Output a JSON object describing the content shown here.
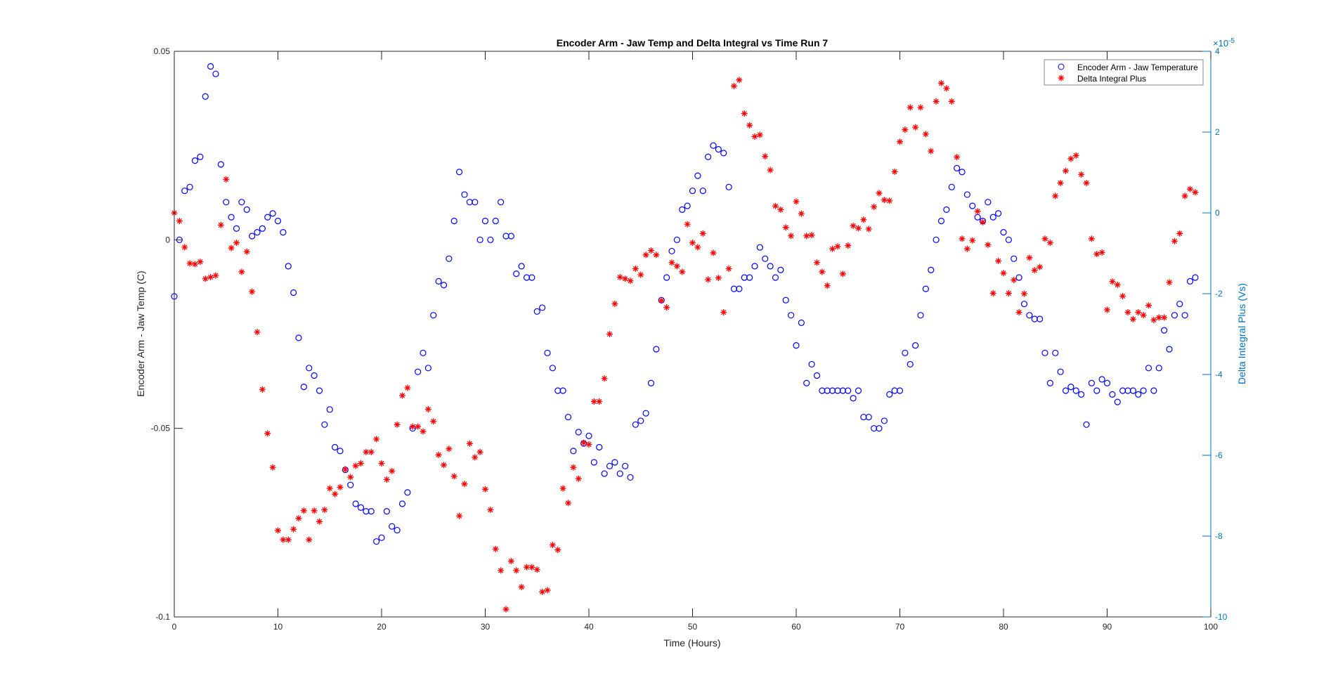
{
  "chart_data": {
    "type": "scatter",
    "title": "Encoder Arm - Jaw Temp and Delta Integral vs Time Run 7",
    "xlabel": "Time (Hours)",
    "ylabel": "Encoder Arm - Jaw Temp (C)",
    "ylabel_right": "Delta Integral Plus (Vs)",
    "right_exponent_label": "×10",
    "right_exponent": "-5",
    "xlim": [
      0,
      100
    ],
    "ylim": [
      -0.1,
      0.05
    ],
    "ylim_right": [
      -10,
      4
    ],
    "xticks": [
      "0",
      "10",
      "20",
      "30",
      "40",
      "50",
      "60",
      "70",
      "80",
      "90",
      "100"
    ],
    "yticks": [
      "0.05",
      "0",
      "-0.05",
      "-0.1"
    ],
    "yticks_right": [
      "4",
      "2",
      "0",
      "-2",
      "-4",
      "-6",
      "-8",
      "-10"
    ],
    "legend_position": "top-right",
    "colors": {
      "temp": "#0000ff",
      "delta": "#ff0000",
      "right_axis": "#0072bd"
    },
    "series": [
      {
        "name": "Encoder Arm - Jaw Temperature",
        "axis": "left",
        "marker": "circle",
        "x_start": 0,
        "x_step": 0.5,
        "values": [
          -0.015,
          0,
          0.013,
          0.014,
          0.021,
          0.022,
          0.038,
          0.046,
          0.044,
          0.02,
          0.01,
          0.006,
          0.003,
          0.01,
          0.008,
          0.001,
          0.002,
          0.003,
          0.006,
          0.007,
          0.005,
          0.002,
          -0.007,
          -0.014,
          -0.026,
          -0.039,
          -0.034,
          -0.036,
          -0.04,
          -0.049,
          -0.045,
          -0.055,
          -0.056,
          -0.061,
          -0.065,
          -0.07,
          -0.071,
          -0.072,
          -0.072,
          -0.08,
          -0.079,
          -0.072,
          -0.076,
          -0.077,
          -0.07,
          -0.067,
          -0.05,
          -0.035,
          -0.03,
          -0.034,
          -0.02,
          -0.011,
          -0.012,
          -0.005,
          0.005,
          0.018,
          0.012,
          0.01,
          0.01,
          0,
          0.005,
          0,
          0.005,
          0.01,
          0.001,
          0.001,
          -0.009,
          -0.007,
          -0.01,
          -0.01,
          -0.019,
          -0.018,
          -0.03,
          -0.034,
          -0.04,
          -0.04,
          -0.047,
          -0.056,
          -0.051,
          -0.054,
          -0.052,
          -0.059,
          -0.055,
          -0.062,
          -0.06,
          -0.059,
          -0.062,
          -0.06,
          -0.063,
          -0.049,
          -0.048,
          -0.046,
          -0.038,
          -0.029,
          -0.016,
          -0.01,
          -0.003,
          0,
          0.008,
          0.009,
          0.013,
          0.017,
          0.013,
          0.022,
          0.025,
          0.024,
          0.023,
          0.014,
          -0.013,
          -0.013,
          -0.01,
          -0.01,
          -0.007,
          -0.002,
          -0.005,
          -0.007,
          -0.01,
          -0.008,
          -0.016,
          -0.02,
          -0.028,
          -0.022,
          -0.038,
          -0.033,
          -0.036,
          -0.04,
          -0.04,
          -0.04,
          -0.04,
          -0.04,
          -0.04,
          -0.042,
          -0.04,
          -0.047,
          -0.047,
          -0.05,
          -0.05,
          -0.048,
          -0.041,
          -0.04,
          -0.04,
          -0.03,
          -0.033,
          -0.028,
          -0.02,
          -0.013,
          -0.008,
          0,
          0.005,
          0.008,
          0.014,
          0.019,
          0.018,
          0.012,
          0.009,
          0.006,
          0.005,
          0.01,
          0.006,
          0.007,
          0.002,
          0,
          -0.005,
          -0.01,
          -0.017,
          -0.02,
          -0.021,
          -0.021,
          -0.03,
          -0.038,
          -0.03,
          -0.035,
          -0.04,
          -0.039,
          -0.04,
          -0.041,
          -0.049,
          -0.038,
          -0.04,
          -0.037,
          -0.038,
          -0.041,
          -0.043,
          -0.04,
          -0.04,
          -0.04,
          -0.041,
          -0.04,
          -0.034,
          -0.04,
          -0.034,
          -0.024,
          -0.029,
          -0.02,
          -0.017,
          -0.02,
          -0.011,
          -0.01
        ]
      },
      {
        "name": "Delta Integral Plus",
        "axis": "right",
        "marker": "asterisk",
        "units_scale": "1e-5",
        "x_start": 0,
        "x_step": 0.5,
        "values": [
          0.0,
          -0.2,
          -0.85,
          -1.25,
          -1.27,
          -1.21,
          -1.63,
          -1.59,
          -1.55,
          -0.3,
          0.83,
          -0.87,
          -0.74,
          -1.46,
          -0.96,
          -1.95,
          -2.95,
          -4.37,
          -5.46,
          -6.3,
          -7.86,
          -8.09,
          -8.09,
          -7.83,
          -7.56,
          -7.37,
          -8.09,
          -7.37,
          -7.64,
          -7.35,
          -6.82,
          -6.96,
          -6.79,
          -6.35,
          -6.54,
          -6.26,
          -6.2,
          -5.92,
          -5.92,
          -5.6,
          -6.2,
          -6.6,
          -6.39,
          -5.24,
          -4.52,
          -4.33,
          -5.29,
          -5.29,
          -5.41,
          -4.86,
          -5.16,
          -5.99,
          -6.24,
          -5.84,
          -6.52,
          -7.5,
          -6.71,
          -5.71,
          -6.05,
          -5.92,
          -6.84,
          -7.35,
          -8.32,
          -8.85,
          -9.81,
          -8.62,
          -8.85,
          -9.26,
          -8.77,
          -8.77,
          -8.83,
          -9.38,
          -9.34,
          -8.22,
          -8.34,
          -6.82,
          -7.18,
          -6.3,
          -6.58,
          -5.69,
          -5.73,
          -4.67,
          -4.67,
          -4.1,
          -3.0,
          -2.25,
          -1.59,
          -1.63,
          -1.68,
          -1.38,
          -1.53,
          -1.04,
          -0.93,
          -1.04,
          -2.17,
          -2.34,
          -1.23,
          -1.32,
          -1.46,
          -0.28,
          -0.74,
          -0.85,
          -0.51,
          -1.65,
          -0.99,
          -1.61,
          -2.46,
          -1.38,
          3.14,
          3.29,
          2.46,
          2.17,
          1.89,
          1.93,
          1.4,
          1.06,
          0.17,
          0.08,
          -0.36,
          -0.57,
          0.28,
          -0.02,
          -0.57,
          -0.55,
          -1.23,
          -1.46,
          -1.8,
          -0.89,
          -0.83,
          -1.51,
          -0.81,
          -0.32,
          -0.38,
          -0.17,
          -0.4,
          0.15,
          0.49,
          0.32,
          0.3,
          1.02,
          1.76,
          2.06,
          2.61,
          2.12,
          2.61,
          1.95,
          1.53,
          2.76,
          3.21,
          3.08,
          2.76,
          1.38,
          -0.64,
          -0.89,
          -0.68,
          0.04,
          -0.23,
          -0.79,
          -1.99,
          -1.19,
          -1.49,
          -1.99,
          -1.66,
          -2.46,
          -2.0,
          -1.11,
          -1.42,
          -1.34,
          -0.64,
          -0.74,
          0.42,
          0.74,
          1.04,
          1.34,
          1.42,
          0.95,
          0.74,
          -0.64,
          -1.02,
          -0.98,
          -2.4,
          -1.7,
          -1.78,
          -2.06,
          -2.46,
          -2.63,
          -2.46,
          -2.53,
          -2.29,
          -2.65,
          -2.59,
          -2.59,
          -1.72,
          -0.7,
          -0.51,
          0.42,
          0.59,
          0.51
        ]
      }
    ]
  }
}
